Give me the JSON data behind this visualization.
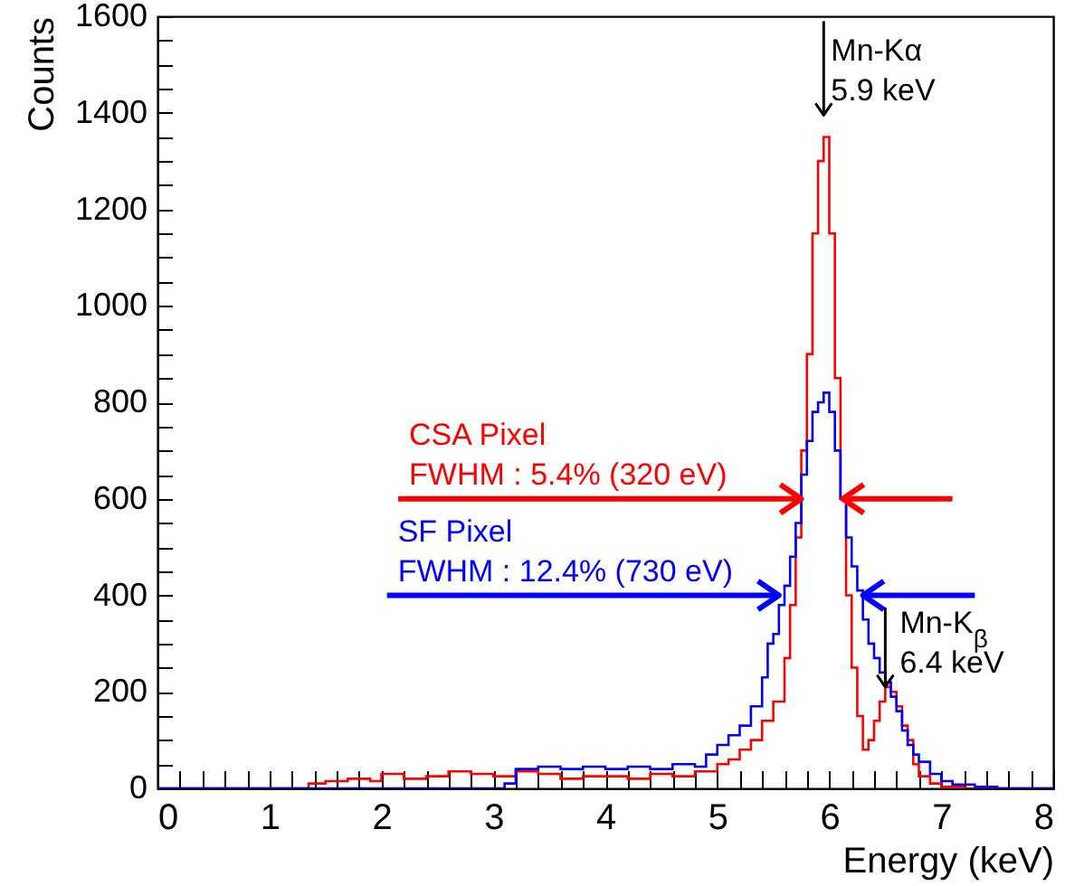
{
  "chart_data": {
    "type": "step",
    "xlabel": "Energy (keV)",
    "ylabel": "Counts",
    "xlim": [
      0,
      8
    ],
    "xticks": [
      0,
      {
        "value": 0.2,
        "label": null
      },
      {
        "value": 0.4,
        "label": null
      },
      {
        "value": 0.6,
        "label": null
      },
      {
        "value": 0.8,
        "label": null
      },
      1,
      {
        "value": 1.2,
        "label": null
      },
      {
        "value": 1.4,
        "label": null
      },
      {
        "value": 1.6,
        "label": null
      },
      {
        "value": 1.8,
        "label": null
      },
      2,
      {
        "value": 2.2,
        "label": null
      },
      {
        "value": 2.4,
        "label": null
      },
      {
        "value": 2.6,
        "label": null
      },
      {
        "value": 2.8,
        "label": null
      },
      3,
      {
        "value": 3.2,
        "label": null
      },
      {
        "value": 3.4,
        "label": null
      },
      {
        "value": 3.6,
        "label": null
      },
      {
        "value": 3.8,
        "label": null
      },
      4,
      {
        "value": 4.2,
        "label": null
      },
      {
        "value": 4.4,
        "label": null
      },
      {
        "value": 4.6,
        "label": null
      },
      {
        "value": 4.8,
        "label": null
      },
      5,
      {
        "value": 5.2,
        "label": null
      },
      {
        "value": 5.4,
        "label": null
      },
      {
        "value": 5.6,
        "label": null
      },
      {
        "value": 5.8,
        "label": null
      },
      6,
      {
        "value": 6.2,
        "label": null
      },
      {
        "value": 6.4,
        "label": null
      },
      {
        "value": 6.6,
        "label": null
      },
      {
        "value": 6.8,
        "label": null
      },
      7,
      {
        "value": 7.2,
        "label": null
      },
      {
        "value": 7.4,
        "label": null
      },
      {
        "value": 7.6,
        "label": null
      },
      {
        "value": 7.8,
        "label": null
      },
      8
    ],
    "ylim": [
      0,
      1600
    ],
    "yticks": [
      0,
      {
        "value": 50,
        "label": null
      },
      {
        "value": 100,
        "label": null
      },
      {
        "value": 150,
        "label": null
      },
      200,
      {
        "value": 250,
        "label": null
      },
      {
        "value": 300,
        "label": null
      },
      {
        "value": 350,
        "label": null
      },
      400,
      {
        "value": 450,
        "label": null
      },
      {
        "value": 500,
        "label": null
      },
      {
        "value": 550,
        "label": null
      },
      600,
      {
        "value": 650,
        "label": null
      },
      {
        "value": 700,
        "label": null
      },
      {
        "value": 750,
        "label": null
      },
      800,
      {
        "value": 850,
        "label": null
      },
      {
        "value": 900,
        "label": null
      },
      {
        "value": 950,
        "label": null
      },
      1000,
      {
        "value": 1050,
        "label": null
      },
      {
        "value": 1100,
        "label": null
      },
      {
        "value": 1150,
        "label": null
      },
      1200,
      {
        "value": 1250,
        "label": null
      },
      {
        "value": 1300,
        "label": null
      },
      {
        "value": 1350,
        "label": null
      },
      1400,
      {
        "value": 1450,
        "label": null
      },
      {
        "value": 1500,
        "label": null
      },
      {
        "value": 1550,
        "label": null
      },
      1600
    ],
    "grid": false,
    "series": [
      {
        "color": "#ff0000",
        "x": [
          0,
          1.35,
          1.5,
          1.7,
          1.9,
          2.0,
          2.2,
          2.4,
          2.6,
          2.8,
          3.0,
          3.2,
          3.4,
          3.6,
          3.8,
          4.0,
          4.2,
          4.4,
          4.6,
          4.8,
          5.0,
          5.1,
          5.2,
          5.3,
          5.4,
          5.5,
          5.6,
          5.65,
          5.7,
          5.75,
          5.8,
          5.85,
          5.9,
          5.95,
          6.0,
          6.05,
          6.1,
          6.15,
          6.2,
          6.25,
          6.3,
          6.35,
          6.4,
          6.45,
          6.5,
          6.55,
          6.6,
          6.65,
          6.7,
          6.75,
          6.8,
          6.9,
          7.0,
          7.2,
          8.0
        ],
        "values": [
          0,
          10,
          15,
          20,
          15,
          30,
          20,
          25,
          35,
          30,
          25,
          35,
          30,
          20,
          25,
          25,
          20,
          30,
          25,
          35,
          50,
          60,
          80,
          100,
          140,
          180,
          270,
          380,
          520,
          700,
          900,
          1150,
          1300,
          1350,
          1150,
          850,
          600,
          400,
          250,
          150,
          80,
          100,
          140,
          180,
          210,
          200,
          170,
          130,
          100,
          50,
          25,
          10,
          3,
          0,
          0
        ]
      },
      {
        "color": "#0000ff",
        "x": [
          0,
          3.1,
          3.2,
          3.4,
          3.6,
          3.8,
          4.0,
          4.2,
          4.4,
          4.6,
          4.8,
          4.9,
          5.0,
          5.1,
          5.2,
          5.3,
          5.4,
          5.45,
          5.5,
          5.55,
          5.6,
          5.65,
          5.7,
          5.75,
          5.8,
          5.85,
          5.9,
          5.95,
          6.0,
          6.05,
          6.1,
          6.15,
          6.2,
          6.25,
          6.3,
          6.35,
          6.4,
          6.45,
          6.5,
          6.55,
          6.6,
          6.65,
          6.7,
          6.75,
          6.8,
          6.9,
          7.0,
          7.1,
          7.3,
          7.5,
          8.0
        ],
        "values": [
          0,
          10,
          40,
          45,
          40,
          45,
          40,
          45,
          40,
          50,
          45,
          70,
          90,
          110,
          130,
          170,
          230,
          300,
          320,
          380,
          420,
          480,
          550,
          650,
          720,
          780,
          800,
          820,
          780,
          700,
          600,
          520,
          460,
          410,
          350,
          300,
          270,
          240,
          220,
          190,
          160,
          120,
          90,
          70,
          55,
          30,
          15,
          8,
          3,
          0,
          0
        ]
      }
    ],
    "annotations": [
      {
        "text": "Mn-Kα\n5.9 keV",
        "x": 5.95,
        "y": 1350
      },
      {
        "text": "Mn-K$_{β}$\n6.4 keV",
        "x": 6.5,
        "y": 210
      },
      {
        "text": "CSA Pixel\nFWHM : 5.4% (320 eV)",
        "x": 5.75,
        "y": 600
      },
      {
        "text": "SF Pixel\nFWHM : 12.4% (730 eV)",
        "x": 5.55,
        "y": 400
      }
    ]
  }
}
